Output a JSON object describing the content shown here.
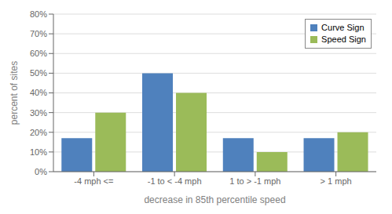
{
  "chart_data": {
    "type": "bar",
    "categories": [
      "-4 mph <=",
      "-1 to < -4 mph",
      "1 to > -1 mph",
      "> 1 mph"
    ],
    "series": [
      {
        "name": "Curve Sign",
        "color": "#4F81BD",
        "values": [
          0.17,
          0.5,
          0.17,
          0.17
        ]
      },
      {
        "name": "Speed Sign",
        "color": "#9BBB59",
        "values": [
          0.3,
          0.4,
          0.1,
          0.2
        ]
      }
    ],
    "xlabel": "decrease in 85th percentile speed",
    "ylabel": "percent of sites",
    "ylim": [
      0,
      0.8
    ],
    "yticks": [
      {
        "value": 0.0,
        "label": "0%"
      },
      {
        "value": 0.1,
        "label": "10%"
      },
      {
        "value": 0.2,
        "label": "20%"
      },
      {
        "value": 0.3,
        "label": "30%"
      },
      {
        "value": 0.4,
        "label": "40%"
      },
      {
        "value": 0.5,
        "label": "50%"
      },
      {
        "value": 0.6,
        "label": "60%"
      },
      {
        "value": 0.7,
        "label": "70%"
      },
      {
        "value": 0.8,
        "label": "80%"
      }
    ],
    "grid": true,
    "legend": "upper right"
  }
}
